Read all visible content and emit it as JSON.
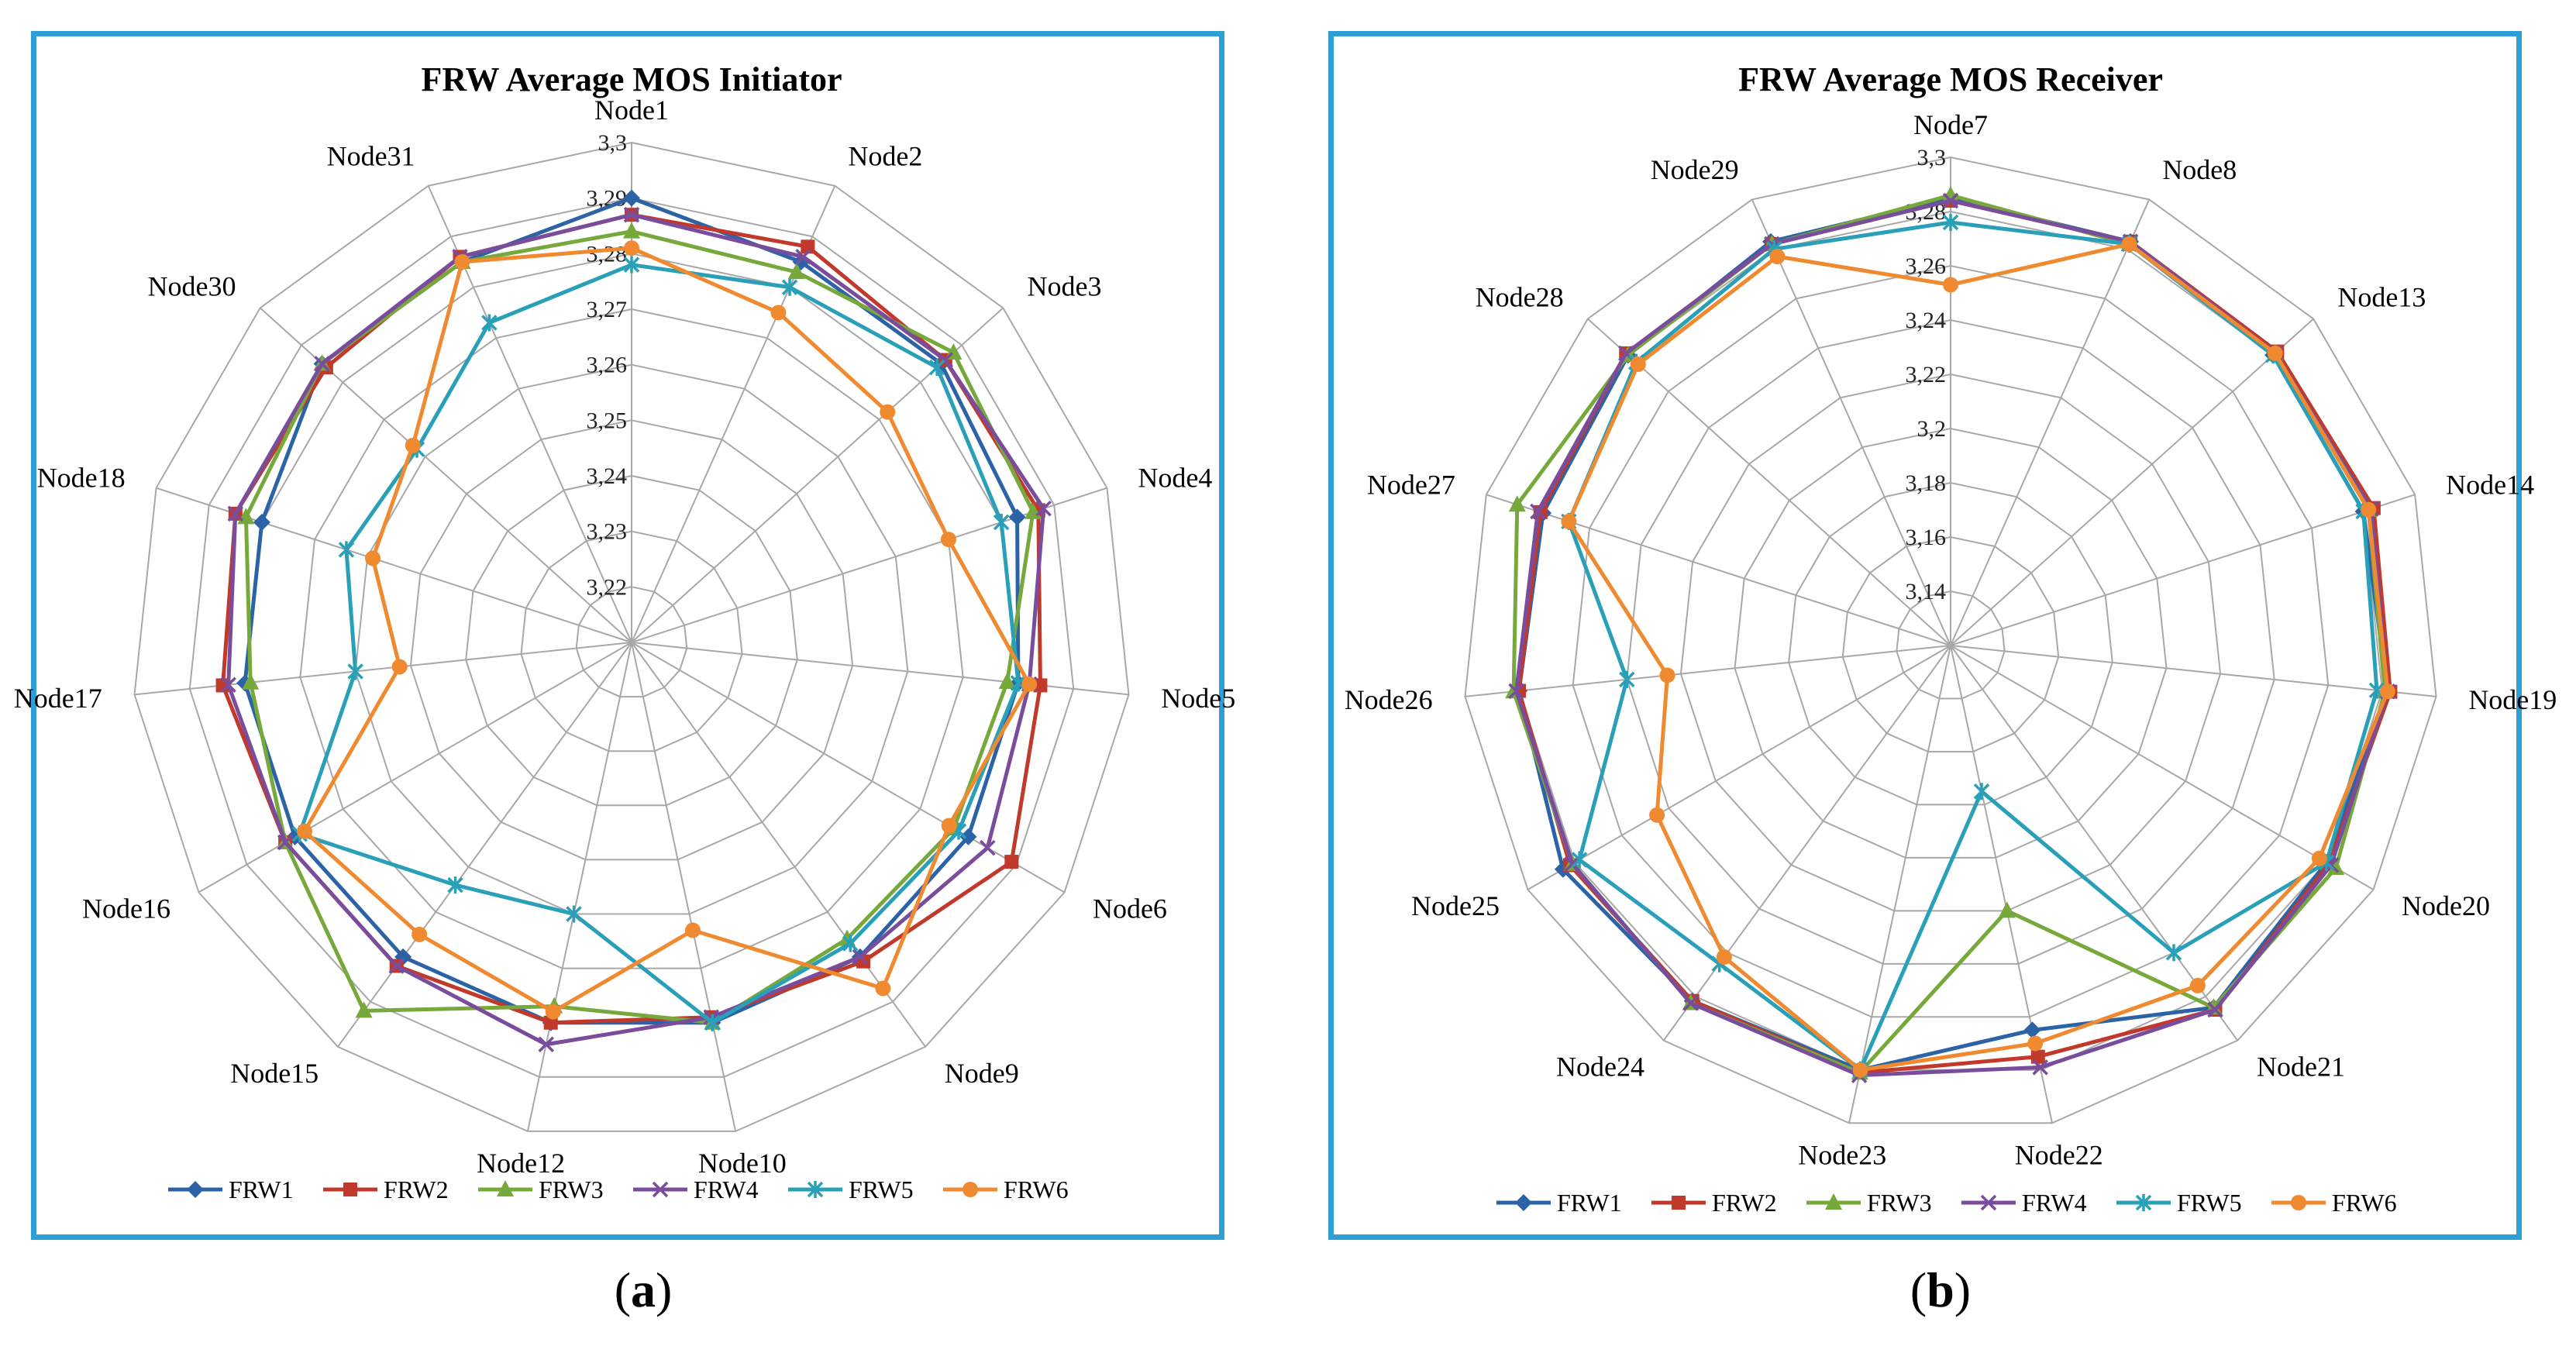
{
  "captions": [
    {
      "open": "(",
      "letter": "a",
      "close": ")"
    },
    {
      "open": "(",
      "letter": "b",
      "close": ")"
    }
  ],
  "colors": {
    "FRW1": "#2b63a6",
    "FRW2": "#c0392b",
    "FRW3": "#77a83c",
    "FRW4": "#7a4d9c",
    "FRW5": "#2aa0b8",
    "FRW6": "#f08a30",
    "frame": "#2e9fd5",
    "grid": "#a8a8a8"
  },
  "chart_data": [
    {
      "type": "radar",
      "title": "FRW Average MOS Initiator",
      "categories": [
        "Node1",
        "Node2",
        "Node3",
        "Node4",
        "Node5",
        "Node6",
        "Node9",
        "Node10",
        "Node12",
        "Node15",
        "Node16",
        "Node17",
        "Node18",
        "Node30",
        "Node31"
      ],
      "rlim": [
        3.21,
        3.3
      ],
      "ticks": [
        "3,22",
        "3,23",
        "3,24",
        "3,25",
        "3,26",
        "3,27",
        "3,28",
        "3,29",
        "3,3"
      ],
      "tick_values": [
        3.22,
        3.23,
        3.24,
        3.25,
        3.26,
        3.27,
        3.28,
        3.29,
        3.3
      ],
      "legend_position": "bottom",
      "series": [
        {
          "name": "FRW1",
          "marker": "diamond",
          "values": [
            3.29,
            3.285,
            3.285,
            3.283,
            3.28,
            3.28,
            3.28,
            3.28,
            3.28,
            3.28,
            3.28,
            3.28,
            3.28,
            3.285,
            3.285
          ]
        },
        {
          "name": "FRW2",
          "marker": "square",
          "values": [
            3.287,
            3.288,
            3.286,
            3.287,
            3.284,
            3.289,
            3.281,
            3.279,
            3.28,
            3.282,
            3.282,
            3.284,
            3.285,
            3.284,
            3.286
          ]
        },
        {
          "name": "FRW3",
          "marker": "triangle",
          "values": [
            3.284,
            3.283,
            3.288,
            3.286,
            3.278,
            3.277,
            3.276,
            3.28,
            3.277,
            3.292,
            3.282,
            3.279,
            3.283,
            3.285,
            3.285
          ]
        },
        {
          "name": "FRW4",
          "marker": "x",
          "values": [
            3.287,
            3.286,
            3.286,
            3.288,
            3.282,
            3.284,
            3.28,
            3.279,
            3.284,
            3.282,
            3.282,
            3.283,
            3.285,
            3.285,
            3.286
          ]
        },
        {
          "name": "FRW5",
          "marker": "star",
          "values": [
            3.278,
            3.28,
            3.284,
            3.28,
            3.28,
            3.278,
            3.277,
            3.28,
            3.26,
            3.264,
            3.279,
            3.26,
            3.264,
            3.262,
            3.273
          ]
        },
        {
          "name": "FRW6",
          "marker": "circle",
          "values": [
            3.281,
            3.275,
            3.272,
            3.27,
            3.282,
            3.276,
            3.287,
            3.263,
            3.278,
            3.275,
            3.278,
            3.252,
            3.259,
            3.263,
            3.285
          ]
        }
      ]
    },
    {
      "type": "radar",
      "title": "FRW Average MOS Receiver",
      "categories": [
        "Node7",
        "Node8",
        "Node13",
        "Node14",
        "Node19",
        "Node20",
        "Node21",
        "Node22",
        "Node23",
        "Node24",
        "Node25",
        "Node26",
        "Node27",
        "Node28",
        "Node29"
      ],
      "rlim": [
        3.12,
        3.3
      ],
      "ticks": [
        "3,14",
        "3,16",
        "3,18",
        "3,2",
        "3,22",
        "3,24",
        "3,26",
        "3,28",
        "3,3"
      ],
      "tick_values": [
        3.14,
        3.16,
        3.18,
        3.2,
        3.22,
        3.24,
        3.26,
        3.28,
        3.3
      ],
      "legend_position": "bottom",
      "series": [
        {
          "name": "FRW1",
          "marker": "diamond",
          "values": [
            3.285,
            3.283,
            3.28,
            3.28,
            3.282,
            3.28,
            3.285,
            3.265,
            3.28,
            3.282,
            3.285,
            3.28,
            3.278,
            3.28,
            3.283
          ]
        },
        {
          "name": "FRW2",
          "marker": "square",
          "values": [
            3.284,
            3.283,
            3.282,
            3.284,
            3.283,
            3.281,
            3.286,
            3.275,
            3.281,
            3.282,
            3.282,
            3.28,
            3.279,
            3.281,
            3.282
          ]
        },
        {
          "name": "FRW3",
          "marker": "triangle",
          "values": [
            3.286,
            3.282,
            3.281,
            3.282,
            3.281,
            3.284,
            3.285,
            3.22,
            3.281,
            3.283,
            3.281,
            3.282,
            3.288,
            3.28,
            3.282
          ]
        },
        {
          "name": "FRW4",
          "marker": "x",
          "values": [
            3.284,
            3.283,
            3.281,
            3.283,
            3.282,
            3.282,
            3.286,
            3.279,
            3.282,
            3.283,
            3.281,
            3.281,
            3.28,
            3.281,
            3.282
          ]
        },
        {
          "name": "FRW5",
          "marker": "star",
          "values": [
            3.276,
            3.282,
            3.28,
            3.28,
            3.278,
            3.28,
            3.26,
            3.175,
            3.28,
            3.265,
            3.278,
            3.24,
            3.268,
            3.276,
            3.28
          ]
        },
        {
          "name": "FRW6",
          "marker": "circle",
          "values": [
            3.253,
            3.282,
            3.281,
            3.282,
            3.282,
            3.277,
            3.275,
            3.27,
            3.28,
            3.262,
            3.245,
            3.225,
            3.268,
            3.275,
            3.277
          ]
        }
      ]
    }
  ]
}
